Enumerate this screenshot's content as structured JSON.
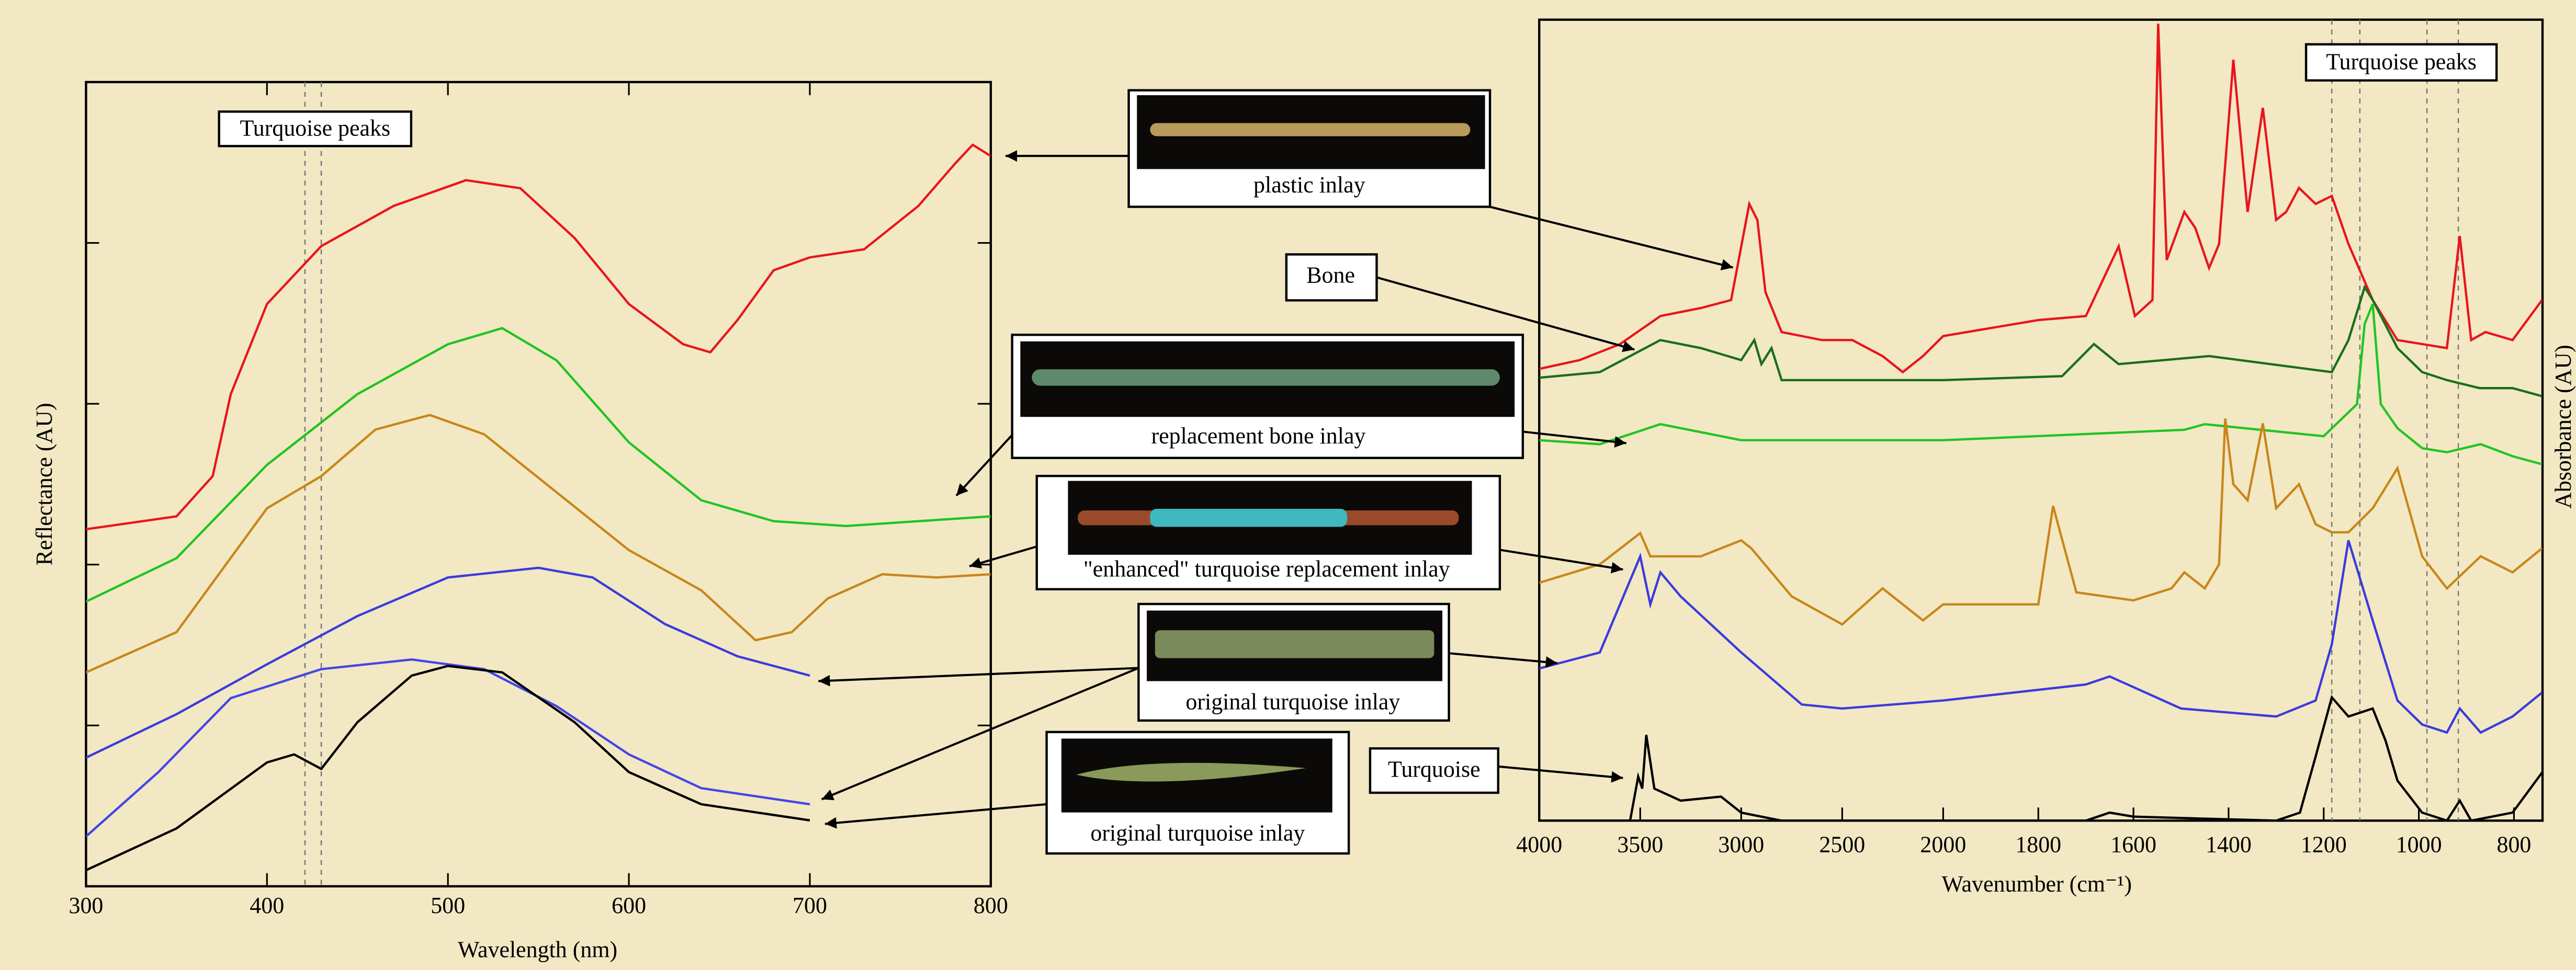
{
  "chart_data": [
    {
      "type": "line",
      "x_label": "Wavelength (nm)",
      "y_label": "Reflectance (AU)",
      "annotation": "Turquoise peaks",
      "peak_lines": [
        421,
        430
      ],
      "xlim": [
        300,
        800
      ],
      "xticks": [
        300,
        400,
        500,
        600,
        700,
        800
      ],
      "ylim": [
        0,
        5
      ],
      "yticks": [
        1,
        2,
        3,
        4
      ],
      "series": [
        {
          "color": "#e8151c",
          "x": [
            300,
            350,
            370,
            380,
            400,
            430,
            470,
            510,
            540,
            570,
            600,
            630,
            645,
            660,
            680,
            700,
            730,
            760,
            780,
            790,
            800
          ],
          "values": [
            2.22,
            2.3,
            2.55,
            3.06,
            3.62,
            3.98,
            4.23,
            4.39,
            4.34,
            4.03,
            3.62,
            3.37,
            3.32,
            3.52,
            3.83,
            3.91,
            3.96,
            4.23,
            4.49,
            4.61,
            4.54
          ]
        },
        {
          "color": "#1fc41f",
          "x": [
            300,
            350,
            400,
            450,
            500,
            530,
            560,
            600,
            640,
            680,
            720,
            760,
            800
          ],
          "values": [
            1.77,
            2.04,
            2.62,
            3.06,
            3.37,
            3.47,
            3.27,
            2.76,
            2.4,
            2.27,
            2.24,
            2.27,
            2.3
          ]
        },
        {
          "color": "#c8861a",
          "x": [
            300,
            350,
            400,
            430,
            460,
            490,
            520,
            560,
            600,
            640,
            670,
            690,
            710,
            740,
            770,
            800
          ],
          "values": [
            1.33,
            1.58,
            2.35,
            2.55,
            2.84,
            2.93,
            2.81,
            2.45,
            2.09,
            1.84,
            1.53,
            1.58,
            1.79,
            1.94,
            1.92,
            1.94
          ]
        },
        {
          "color": "#3b3bdc",
          "x": [
            300,
            350,
            400,
            450,
            500,
            550,
            580,
            620,
            660,
            700
          ],
          "values": [
            0.8,
            1.07,
            1.38,
            1.68,
            1.92,
            1.98,
            1.92,
            1.63,
            1.43,
            1.31
          ]
        },
        {
          "color": "#4545e6",
          "x": [
            300,
            340,
            380,
            430,
            480,
            520,
            560,
            600,
            640,
            700
          ],
          "values": [
            0.31,
            0.71,
            1.17,
            1.35,
            1.41,
            1.35,
            1.12,
            0.82,
            0.61,
            0.51
          ]
        },
        {
          "color": "#000000",
          "x": [
            300,
            350,
            400,
            415,
            430,
            450,
            480,
            500,
            530,
            570,
            600,
            640,
            700
          ],
          "values": [
            0.1,
            0.36,
            0.77,
            0.82,
            0.73,
            1.02,
            1.31,
            1.37,
            1.33,
            1.02,
            0.71,
            0.51,
            0.41
          ]
        }
      ]
    },
    {
      "type": "line",
      "x_label": "Wavenumber (cm⁻¹)",
      "y_label": "Absorbance (AU)",
      "annotation": "Turquoise peaks",
      "peak_lines": [
        1183,
        1124,
        983,
        917
      ],
      "xlim": [
        4000,
        740
      ],
      "xticks": [
        4000,
        3500,
        3000,
        2500,
        2000,
        1800,
        1600,
        1400,
        1200,
        1000,
        800
      ],
      "x_scale_break": 2000,
      "ylim": [
        0,
        10
      ],
      "series": [
        {
          "color": "#e8151c",
          "x": [
            4000,
            3800,
            3600,
            3400,
            3200,
            3050,
            2960,
            2920,
            2880,
            2800,
            2600,
            2450,
            2300,
            2200,
            2100,
            2000,
            1800,
            1700,
            1631,
            1597,
            1560,
            1548,
            1530,
            1493,
            1470,
            1441,
            1420,
            1390,
            1360,
            1328,
            1300,
            1279,
            1252,
            1217,
            1183,
            1148,
            1097,
            1045,
            993,
            941,
            914,
            890,
            860,
            803,
            741
          ],
          "values": [
            5.64,
            5.75,
            5.95,
            6.3,
            6.4,
            6.5,
            7.7,
            7.5,
            6.6,
            6.1,
            6.0,
            6.0,
            5.8,
            5.6,
            5.8,
            6.05,
            6.25,
            6.3,
            7.17,
            6.3,
            6.5,
            9.95,
            7.0,
            7.6,
            7.4,
            6.9,
            7.2,
            9.5,
            7.6,
            8.9,
            7.5,
            7.6,
            7.9,
            7.7,
            7.8,
            7.2,
            6.5,
            6.0,
            5.95,
            5.9,
            7.3,
            6.0,
            6.1,
            6.0,
            6.5
          ]
        },
        {
          "color": "#1a6f1a",
          "x": [
            4000,
            3700,
            3400,
            3200,
            3000,
            2935,
            2900,
            2850,
            2800,
            2500,
            2000,
            1750,
            1683,
            1631,
            1441,
            1183,
            1148,
            1114,
            1097,
            1045,
            993,
            941,
            872,
            803,
            741
          ],
          "values": [
            5.53,
            5.6,
            6.0,
            5.9,
            5.75,
            6.0,
            5.7,
            5.9,
            5.5,
            5.5,
            5.5,
            5.55,
            5.95,
            5.7,
            5.8,
            5.6,
            6.0,
            6.66,
            6.5,
            5.9,
            5.6,
            5.5,
            5.4,
            5.4,
            5.3
          ]
        },
        {
          "color": "#22c422",
          "x": [
            4000,
            3700,
            3400,
            3000,
            2000,
            1493,
            1450,
            1200,
            1130,
            1114,
            1097,
            1080,
            1045,
            993,
            941,
            870,
            803,
            741
          ],
          "values": [
            4.75,
            4.7,
            4.95,
            4.75,
            4.75,
            4.88,
            4.95,
            4.8,
            5.2,
            6.2,
            6.45,
            5.2,
            4.9,
            4.65,
            4.6,
            4.7,
            4.55,
            4.45
          ]
        },
        {
          "color": "#c8861a",
          "x": [
            4000,
            3700,
            3500,
            3450,
            3200,
            3000,
            2950,
            2750,
            2500,
            2300,
            2100,
            2000,
            1800,
            1769,
            1720,
            1600,
            1520,
            1493,
            1450,
            1420,
            1407,
            1390,
            1360,
            1328,
            1300,
            1252,
            1217,
            1183,
            1148,
            1097,
            1045,
            993,
            941,
            870,
            803,
            741
          ],
          "values": [
            2.97,
            3.2,
            3.59,
            3.3,
            3.3,
            3.5,
            3.4,
            2.8,
            2.45,
            2.9,
            2.5,
            2.7,
            2.7,
            3.93,
            2.85,
            2.75,
            2.9,
            3.1,
            2.9,
            3.2,
            5.02,
            4.2,
            4.0,
            4.96,
            3.9,
            4.2,
            3.7,
            3.6,
            3.6,
            3.9,
            4.4,
            3.3,
            2.9,
            3.3,
            3.1,
            3.4
          ]
        },
        {
          "color": "#3b3bdc",
          "x": [
            4000,
            3700,
            3500,
            3450,
            3400,
            3300,
            3000,
            2700,
            2500,
            2000,
            1700,
            1650,
            1500,
            1300,
            1217,
            1183,
            1148,
            1097,
            1045,
            993,
            941,
            914,
            870,
            803,
            741
          ],
          "values": [
            1.9,
            2.1,
            3.3,
            2.7,
            3.1,
            2.8,
            2.1,
            1.45,
            1.4,
            1.5,
            1.7,
            1.8,
            1.4,
            1.3,
            1.5,
            2.2,
            3.5,
            2.5,
            1.5,
            1.2,
            1.1,
            1.4,
            1.1,
            1.3,
            1.6
          ]
        },
        {
          "color": "#000000",
          "x": [
            4000,
            3550,
            3510,
            3490,
            3470,
            3430,
            3300,
            3100,
            3000,
            2800,
            1700,
            1650,
            1600,
            1300,
            1250,
            1217,
            1183,
            1148,
            1097,
            1070,
            1045,
            993,
            941,
            914,
            890,
            803,
            741
          ],
          "values": [
            0,
            0,
            0.55,
            0.4,
            1.07,
            0.4,
            0.25,
            0.3,
            0.1,
            0,
            0,
            0.1,
            0.05,
            0,
            0.1,
            0.8,
            1.54,
            1.3,
            1.4,
            1.0,
            0.5,
            0.1,
            0,
            0.25,
            0,
            0.1,
            0.6
          ]
        }
      ]
    }
  ],
  "callouts": [
    "plastic inlay",
    "Bone",
    "replacement bone inlay",
    "\"enhanced\" turquoise replacement inlay",
    "original turquoise inlay",
    "Turquoise",
    "original turquoise inlay"
  ]
}
